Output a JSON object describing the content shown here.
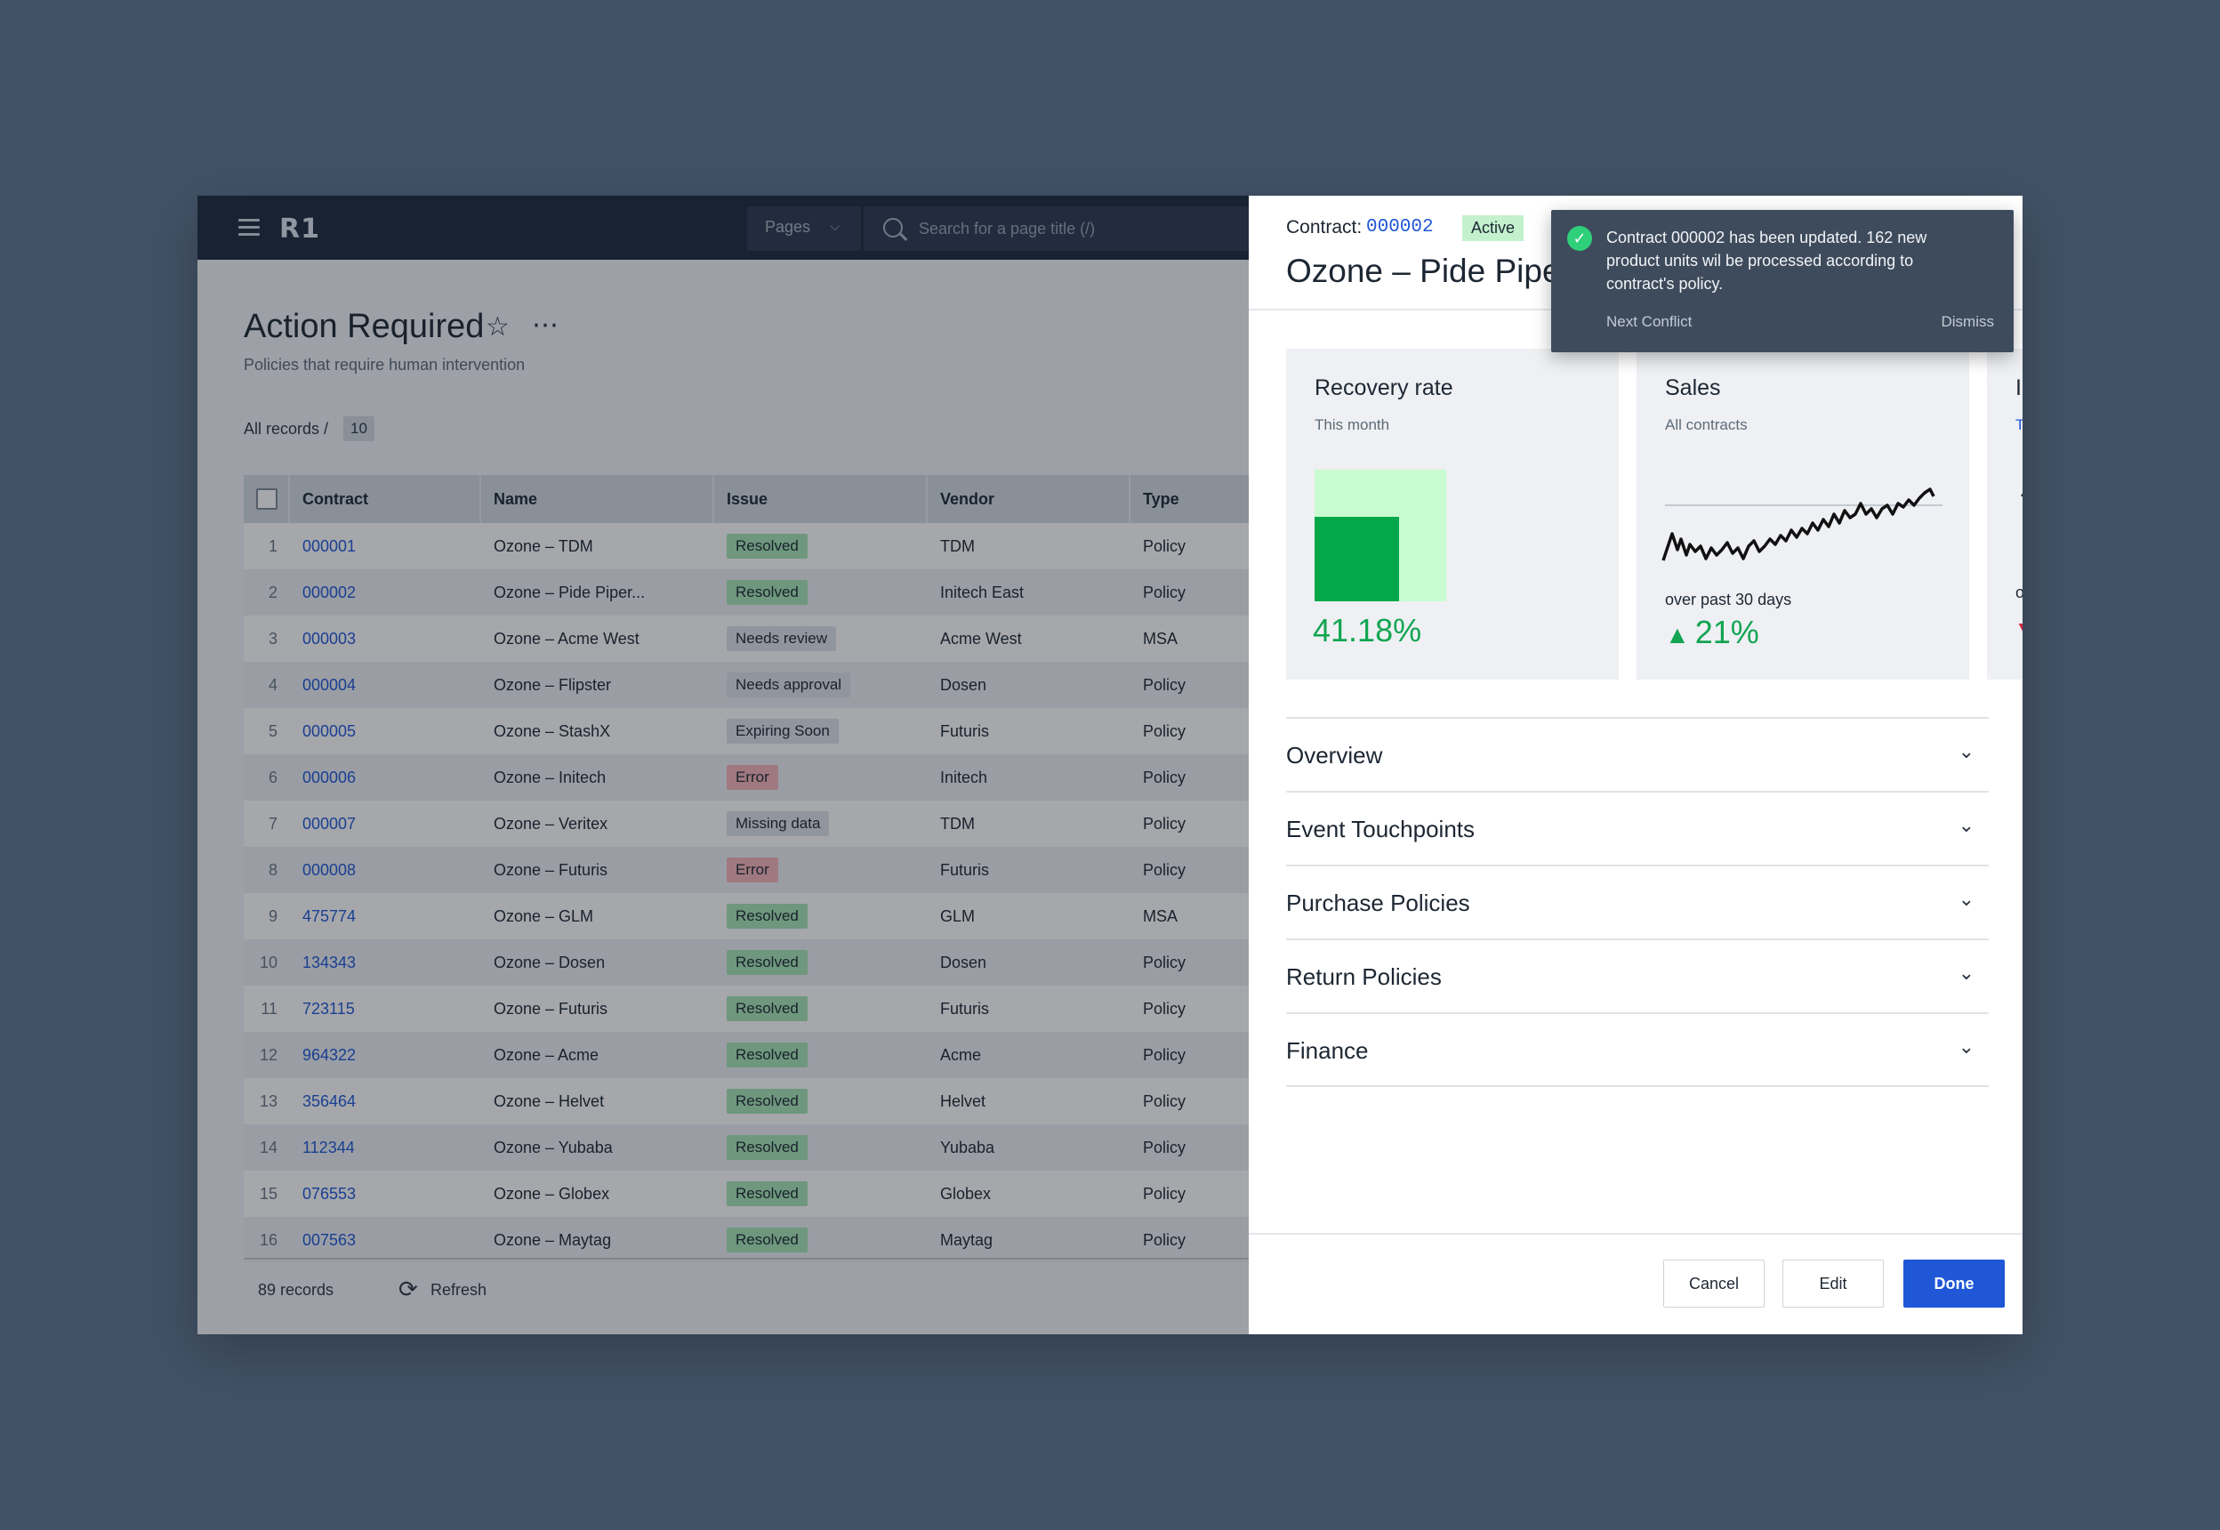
{
  "app": {
    "logo": "R1",
    "pages_label": "Pages",
    "search_placeholder": "Search for a page title (/)",
    "title": "Action Required",
    "subtitle": "Policies that require human intervention",
    "breadcrumb": "All records  /",
    "record_count_badge": "10"
  },
  "table": {
    "columns": [
      "Contract",
      "Name",
      "Issue",
      "Vendor",
      "Type"
    ],
    "rows": [
      {
        "n": "1",
        "contract": "000001",
        "name": "Ozone – TDM",
        "issue": "Resolved",
        "kind": "resolved",
        "vendor": "TDM",
        "type": "Policy"
      },
      {
        "n": "2",
        "contract": "000002",
        "name": "Ozone – Pide Piper...",
        "issue": "Resolved",
        "kind": "resolved",
        "vendor": "Initech East",
        "type": "Policy"
      },
      {
        "n": "3",
        "contract": "000003",
        "name": "Ozone – Acme West",
        "issue": "Needs review",
        "kind": "grey",
        "vendor": "Acme West",
        "type": "MSA"
      },
      {
        "n": "4",
        "contract": "000004",
        "name": "Ozone – Flipster",
        "issue": "Needs approval",
        "kind": "grey",
        "vendor": "Dosen",
        "type": "Policy"
      },
      {
        "n": "5",
        "contract": "000005",
        "name": "Ozone – StashX",
        "issue": "Expiring Soon",
        "kind": "grey",
        "vendor": "Futuris",
        "type": "Policy"
      },
      {
        "n": "6",
        "contract": "000006",
        "name": "Ozone – Initech",
        "issue": "Error",
        "kind": "error",
        "vendor": "Initech",
        "type": "Policy"
      },
      {
        "n": "7",
        "contract": "000007",
        "name": "Ozone – Veritex",
        "issue": "Missing data",
        "kind": "grey",
        "vendor": "TDM",
        "type": "Policy"
      },
      {
        "n": "8",
        "contract": "000008",
        "name": "Ozone – Futuris",
        "issue": "Error",
        "kind": "error",
        "vendor": "Futuris",
        "type": "Policy"
      },
      {
        "n": "9",
        "contract": "475774",
        "name": "Ozone – GLM",
        "issue": "Resolved",
        "kind": "resolved",
        "vendor": "GLM",
        "type": "MSA"
      },
      {
        "n": "10",
        "contract": "134343",
        "name": "Ozone – Dosen",
        "issue": "Resolved",
        "kind": "resolved",
        "vendor": "Dosen",
        "type": "Policy"
      },
      {
        "n": "11",
        "contract": "723115",
        "name": "Ozone – Futuris",
        "issue": "Resolved",
        "kind": "resolved",
        "vendor": "Futuris",
        "type": "Policy"
      },
      {
        "n": "12",
        "contract": "964322",
        "name": "Ozone – Acme",
        "issue": "Resolved",
        "kind": "resolved",
        "vendor": "Acme",
        "type": "Policy"
      },
      {
        "n": "13",
        "contract": "356464",
        "name": "Ozone – Helvet",
        "issue": "Resolved",
        "kind": "resolved",
        "vendor": "Helvet",
        "type": "Policy"
      },
      {
        "n": "14",
        "contract": "112344",
        "name": "Ozone – Yubaba",
        "issue": "Resolved",
        "kind": "resolved",
        "vendor": "Yubaba",
        "type": "Policy"
      },
      {
        "n": "15",
        "contract": "076553",
        "name": "Ozone – Globex",
        "issue": "Resolved",
        "kind": "resolved",
        "vendor": "Globex",
        "type": "Policy"
      },
      {
        "n": "16",
        "contract": "007563",
        "name": "Ozone – Maytag",
        "issue": "Resolved",
        "kind": "resolved",
        "vendor": "Maytag",
        "type": "Policy"
      }
    ],
    "footer_records": "89 records",
    "refresh_label": "Refresh"
  },
  "panel": {
    "contract_label": "Contract:",
    "contract_id": "000002",
    "status": "Active",
    "title": "Ozone – Pide Piper",
    "cards": {
      "recovery": {
        "title": "Recovery rate",
        "subtitle": "This month",
        "value": "41.18%",
        "fraction": 0.4118
      },
      "sales": {
        "title": "Sales",
        "subtitle": "All contracts",
        "caption": "over past 30 days",
        "value": "21%"
      },
      "third": {
        "title_fragment": "I",
        "link_fragment": "T",
        "caption_fragment": "o"
      }
    },
    "sections": [
      "Overview",
      "Event Touchpoints",
      "Purchase Policies",
      "Return Policies",
      "Finance"
    ],
    "buttons": {
      "cancel": "Cancel",
      "edit": "Edit",
      "done": "Done"
    }
  },
  "toast": {
    "message": "Contract 000002 has been updated. 162 new product units wil be processed according to contract's policy.",
    "next_conflict": "Next Conflict",
    "dismiss": "Dismiss"
  },
  "colors": {
    "accent": "#1f57d6",
    "success": "#12a552",
    "resolved_badge": "#a7e6b5",
    "error_badge": "#f6b5b8",
    "topbar": "#1b2a3d"
  },
  "icons": [
    "hamburger-icon",
    "search-icon",
    "star-icon",
    "more-icon",
    "refresh-icon",
    "check-circle-icon",
    "chevron-down-icon",
    "triangle-up-icon"
  ]
}
